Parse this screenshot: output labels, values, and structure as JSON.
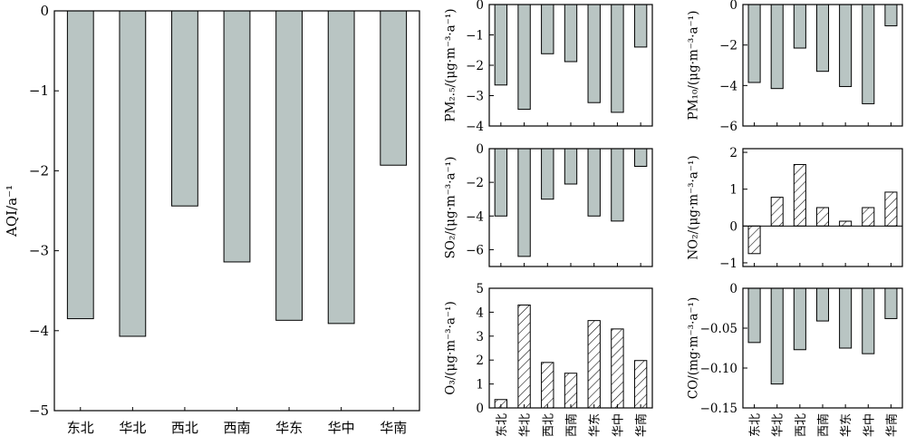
{
  "colors": {
    "bar_fill": "#b9c5c3",
    "hatch_stroke": "#000000",
    "axis": "#000000"
  },
  "regions": [
    "东北",
    "华北",
    "西北",
    "西南",
    "华东",
    "华中",
    "华南"
  ],
  "chart_data": [
    {
      "id": "aqi",
      "type": "bar",
      "ylabel": "AQI/a⁻¹",
      "categories": [
        "东北",
        "华北",
        "西北",
        "西南",
        "华东",
        "华中",
        "华南"
      ],
      "values": [
        -3.85,
        -4.07,
        -2.44,
        -3.14,
        -3.87,
        -3.91,
        -1.93
      ],
      "ylim": [
        -5,
        0
      ],
      "yticks": [
        {
          "v": 0,
          "t": "0"
        },
        {
          "v": -1,
          "t": "−1"
        },
        {
          "v": -2,
          "t": "−2"
        },
        {
          "v": -3,
          "t": "−3"
        },
        {
          "v": -4,
          "t": "−4"
        },
        {
          "v": -5,
          "t": "−5"
        }
      ],
      "hatch": false,
      "show_xlabels": true,
      "xlabels_vertical": false
    },
    {
      "id": "pm25",
      "type": "bar",
      "ylabel": "PM₂.₅/(μg·m⁻³·a⁻¹)",
      "categories": [
        "东北",
        "华北",
        "西北",
        "西南",
        "华东",
        "华中",
        "华南"
      ],
      "values": [
        -2.65,
        -3.45,
        -1.62,
        -1.88,
        -3.23,
        -3.55,
        -1.4
      ],
      "ylim": [
        -4,
        0
      ],
      "yticks": [
        {
          "v": 0,
          "t": "0"
        },
        {
          "v": -1,
          "t": "−1"
        },
        {
          "v": -2,
          "t": "−2"
        },
        {
          "v": -3,
          "t": "−3"
        },
        {
          "v": -4,
          "t": "−4"
        }
      ],
      "hatch": false,
      "show_xlabels": false
    },
    {
      "id": "pm10",
      "type": "bar",
      "ylabel": "PM₁₀/(μg·m⁻³·a⁻¹)",
      "categories": [
        "东北",
        "华北",
        "西北",
        "西南",
        "华东",
        "华中",
        "华南"
      ],
      "values": [
        -3.85,
        -4.15,
        -2.15,
        -3.3,
        -4.05,
        -4.9,
        -1.05
      ],
      "ylim": [
        -6,
        0
      ],
      "yticks": [
        {
          "v": 0,
          "t": "0"
        },
        {
          "v": -2,
          "t": "−2"
        },
        {
          "v": -4,
          "t": "−4"
        },
        {
          "v": -6,
          "t": "−6"
        }
      ],
      "hatch": false,
      "show_xlabels": false
    },
    {
      "id": "so2",
      "type": "bar",
      "ylabel": "SO₂/(μg·m⁻³·a⁻¹)",
      "categories": [
        "东北",
        "华北",
        "西北",
        "西南",
        "华东",
        "华中",
        "华南"
      ],
      "values": [
        -4.0,
        -6.4,
        -3.0,
        -2.1,
        -4.0,
        -4.3,
        -1.05
      ],
      "ylim": [
        -7,
        0
      ],
      "yticks": [
        {
          "v": 0,
          "t": "0"
        },
        {
          "v": -2,
          "t": "−2"
        },
        {
          "v": -4,
          "t": "−4"
        },
        {
          "v": -6,
          "t": "−6"
        }
      ],
      "hatch": false,
      "show_xlabels": false
    },
    {
      "id": "no2",
      "type": "bar",
      "ylabel": "NO₂/(μg·m⁻³·a⁻¹)",
      "categories": [
        "东北",
        "华北",
        "西北",
        "西南",
        "华东",
        "华中",
        "华南"
      ],
      "values": [
        -0.75,
        0.78,
        1.67,
        0.5,
        0.13,
        0.5,
        0.92
      ],
      "ylim": [
        -1.1,
        2.1
      ],
      "yticks": [
        {
          "v": 2,
          "t": "2"
        },
        {
          "v": 1,
          "t": "1"
        },
        {
          "v": 0,
          "t": "0"
        },
        {
          "v": -1,
          "t": "−1"
        }
      ],
      "hatch": true,
      "show_xlabels": false
    },
    {
      "id": "o3",
      "type": "bar",
      "ylabel": "O₃/(μg·m⁻³·a⁻¹)",
      "categories": [
        "东北",
        "华北",
        "西北",
        "西南",
        "华东",
        "华中",
        "华南"
      ],
      "values": [
        0.35,
        4.3,
        1.9,
        1.45,
        3.65,
        3.3,
        1.98
      ],
      "ylim": [
        0,
        5
      ],
      "yticks": [
        {
          "v": 5,
          "t": "5"
        },
        {
          "v": 4,
          "t": "4"
        },
        {
          "v": 3,
          "t": "3"
        },
        {
          "v": 2,
          "t": "2"
        },
        {
          "v": 1,
          "t": "1"
        },
        {
          "v": 0,
          "t": "0"
        }
      ],
      "hatch": true,
      "show_xlabels": true,
      "xlabels_vertical": true
    },
    {
      "id": "co",
      "type": "bar",
      "ylabel": "CO/(mg·m⁻³·a⁻¹)",
      "categories": [
        "东北",
        "华北",
        "西北",
        "西南",
        "华东",
        "华中",
        "华南"
      ],
      "values": [
        -0.068,
        -0.12,
        -0.077,
        -0.041,
        -0.075,
        -0.082,
        -0.038
      ],
      "ylim": [
        -0.15,
        0
      ],
      "yticks": [
        {
          "v": 0,
          "t": "0"
        },
        {
          "v": -0.05,
          "t": "−0.05"
        },
        {
          "v": -0.1,
          "t": "−0.10"
        },
        {
          "v": -0.15,
          "t": "−0.15"
        }
      ],
      "hatch": false,
      "show_xlabels": true,
      "xlabels_vertical": true
    }
  ]
}
